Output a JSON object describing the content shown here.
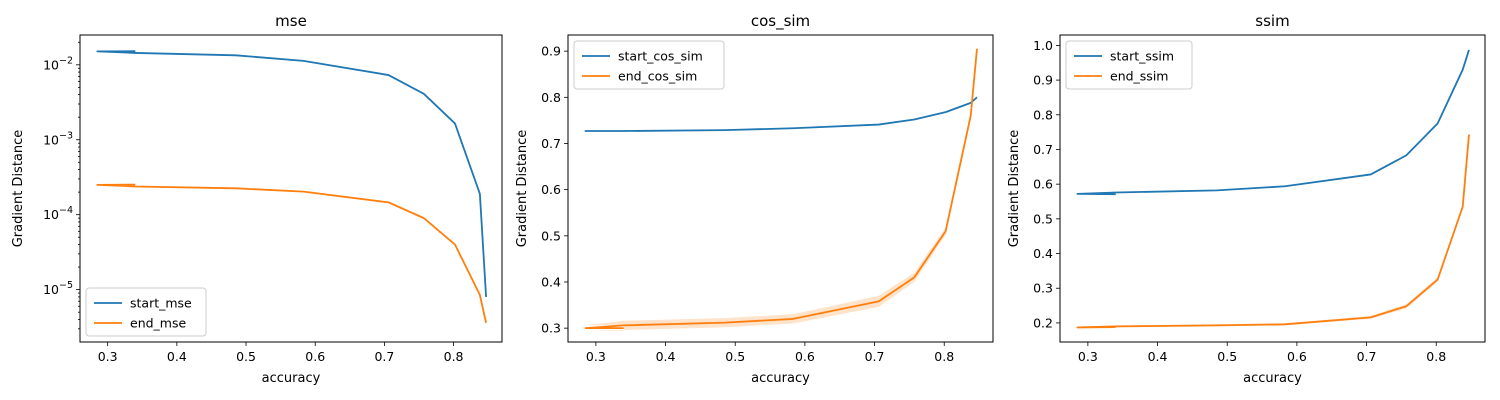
{
  "chart_data": [
    {
      "type": "line",
      "title": "mse",
      "xlabel": "accuracy",
      "ylabel": "Gradient Distance",
      "yscale": "log",
      "xlim": [
        0.26,
        0.87
      ],
      "ylim": [
        2e-06,
        0.025
      ],
      "xticks": [
        0.3,
        0.4,
        0.5,
        0.6,
        0.7,
        0.8
      ],
      "xtick_labels": [
        "0.3",
        "0.4",
        "0.5",
        "0.6",
        "0.7",
        "0.8"
      ],
      "yticks": [
        1e-05,
        0.0001,
        0.001,
        0.01
      ],
      "ytick_labels": [
        {
          "base": "10",
          "exp": "−5"
        },
        {
          "base": "10",
          "exp": "−4"
        },
        {
          "base": "10",
          "exp": "−3"
        },
        {
          "base": "10",
          "exp": "−2"
        }
      ],
      "legend_position": "lower-left",
      "series": [
        {
          "name": "start_mse",
          "color": "#1f77b4",
          "x": [
            0.34,
            0.285,
            0.34,
            0.485,
            0.583,
            0.706,
            0.757,
            0.802,
            0.838,
            0.847
          ],
          "y": [
            0.0152,
            0.0151,
            0.0144,
            0.0134,
            0.0113,
            0.0073,
            0.0041,
            0.00165,
            0.00019,
            8e-06
          ]
        },
        {
          "name": "end_mse",
          "color": "#ff7f0e",
          "x": [
            0.34,
            0.285,
            0.34,
            0.485,
            0.583,
            0.706,
            0.757,
            0.802,
            0.838,
            0.847
          ],
          "y": [
            0.000252,
            0.00025,
            0.000238,
            0.000225,
            0.000203,
            0.000146,
            9e-05,
            4e-05,
            8.5e-06,
            3.6e-06
          ]
        }
      ]
    },
    {
      "type": "line",
      "title": "cos_sim",
      "xlabel": "accuracy",
      "ylabel": "Gradient Distance",
      "yscale": "linear",
      "xlim": [
        0.26,
        0.87
      ],
      "ylim": [
        0.27,
        0.935
      ],
      "xticks": [
        0.3,
        0.4,
        0.5,
        0.6,
        0.7,
        0.8
      ],
      "xtick_labels": [
        "0.3",
        "0.4",
        "0.5",
        "0.6",
        "0.7",
        "0.8"
      ],
      "yticks": [
        0.3,
        0.4,
        0.5,
        0.6,
        0.7,
        0.8,
        0.9
      ],
      "ytick_labels": [
        "0.3",
        "0.4",
        "0.5",
        "0.6",
        "0.7",
        "0.8",
        "0.9"
      ],
      "legend_position": "upper-left",
      "series": [
        {
          "name": "start_cos_sim",
          "color": "#1f77b4",
          "x": [
            0.34,
            0.285,
            0.34,
            0.485,
            0.583,
            0.706,
            0.757,
            0.802,
            0.838,
            0.847
          ],
          "y": [
            0.727,
            0.727,
            0.727,
            0.729,
            0.733,
            0.741,
            0.752,
            0.768,
            0.788,
            0.8
          ]
        },
        {
          "name": "end_cos_sim",
          "color": "#ff7f0e",
          "x": [
            0.34,
            0.285,
            0.34,
            0.485,
            0.583,
            0.706,
            0.757,
            0.802,
            0.838,
            0.847
          ],
          "y": [
            0.3,
            0.3,
            0.306,
            0.312,
            0.32,
            0.358,
            0.41,
            0.51,
            0.76,
            0.905
          ],
          "band": [
            0.006,
            0.006,
            0.01,
            0.01,
            0.01,
            0.012,
            0.01,
            0.008,
            0.008,
            0.006
          ]
        }
      ]
    },
    {
      "type": "line",
      "title": "ssim",
      "xlabel": "accuracy",
      "ylabel": "Gradient Distance",
      "yscale": "linear",
      "xlim": [
        0.26,
        0.87
      ],
      "ylim": [
        0.145,
        1.03
      ],
      "xticks": [
        0.3,
        0.4,
        0.5,
        0.6,
        0.7,
        0.8
      ],
      "xtick_labels": [
        "0.3",
        "0.4",
        "0.5",
        "0.6",
        "0.7",
        "0.8"
      ],
      "yticks": [
        0.2,
        0.3,
        0.4,
        0.5,
        0.6,
        0.7,
        0.8,
        0.9,
        1.0
      ],
      "ytick_labels": [
        "0.2",
        "0.3",
        "0.4",
        "0.5",
        "0.6",
        "0.7",
        "0.8",
        "0.9",
        "1.0"
      ],
      "legend_position": "upper-left",
      "series": [
        {
          "name": "start_ssim",
          "color": "#1f77b4",
          "x": [
            0.34,
            0.285,
            0.34,
            0.485,
            0.583,
            0.706,
            0.757,
            0.802,
            0.838,
            0.847
          ],
          "y": [
            0.571,
            0.572,
            0.576,
            0.582,
            0.594,
            0.628,
            0.683,
            0.775,
            0.93,
            0.987
          ]
        },
        {
          "name": "end_ssim",
          "color": "#ff7f0e",
          "x": [
            0.34,
            0.285,
            0.34,
            0.485,
            0.583,
            0.706,
            0.757,
            0.802,
            0.838,
            0.847
          ],
          "y": [
            0.188,
            0.187,
            0.19,
            0.193,
            0.196,
            0.216,
            0.248,
            0.325,
            0.535,
            0.743
          ],
          "band": [
            0.002,
            0.002,
            0.003,
            0.003,
            0.003,
            0.004,
            0.006,
            0.006,
            0.006,
            0.004
          ]
        }
      ]
    }
  ]
}
